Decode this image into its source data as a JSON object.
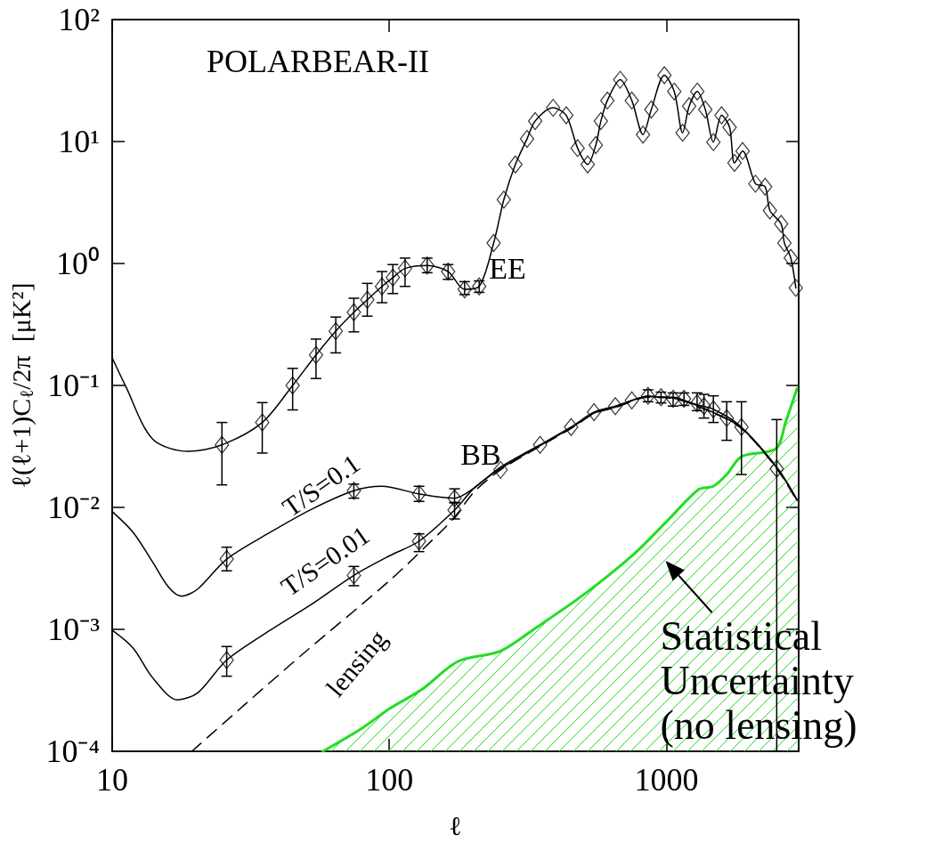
{
  "chart_data": {
    "type": "line",
    "title": "POLARBEAR-II",
    "xlabel": "ℓ",
    "ylabel": "ℓ(ℓ+1)C$_{ℓ}$/2π  [μK²]",
    "log": "xy",
    "grid": false,
    "marker": "diamond",
    "xlim": [
      10,
      3000
    ],
    "ylim": [
      0.0001,
      100
    ],
    "xticks": [
      10,
      100,
      1000
    ],
    "yticks": [
      {
        "value": 0.0001,
        "label": "10⁻⁴"
      },
      {
        "value": 0.001,
        "label": "10⁻³"
      },
      {
        "value": 0.01,
        "label": "10⁻²"
      },
      {
        "value": 0.1,
        "label": "10⁻¹"
      },
      {
        "value": 1,
        "label": "10⁰"
      },
      {
        "value": 10,
        "label": "10¹"
      },
      {
        "value": 100,
        "label": "10²"
      }
    ],
    "series": [
      {
        "color": "#000000",
        "marker": "none",
        "x": [
          10,
          11.2,
          14,
          18.8,
          24.9,
          34.8,
          44.8,
          54.4,
          64.1,
          74.5,
          83.3,
          94.1,
          103,
          114,
          137,
          163,
          187,
          211,
          238,
          259,
          285,
          314,
          336,
          390,
          435,
          478,
          520,
          556,
          580,
          612,
          681,
          750,
          823,
          882,
          983,
          1067,
          1144,
          1208,
          1292,
          1381,
          1477,
          1581,
          1690,
          1760,
          1883,
          2095,
          2270,
          2362,
          2593,
          2665,
          2810,
          2930
        ],
        "values": [
          0.169,
          0.098,
          0.0363,
          0.0288,
          0.0326,
          0.0497,
          0.1,
          0.178,
          0.279,
          0.398,
          0.504,
          0.649,
          0.767,
          0.91,
          0.962,
          0.859,
          0.614,
          0.649,
          1.47,
          3.34,
          6.49,
          10.5,
          14.7,
          18.9,
          16.4,
          8.83,
          6.49,
          9.35,
          14.7,
          21.7,
          32.1,
          21.7,
          11.4,
          18.3,
          35.0,
          25.7,
          11.8,
          19.5,
          25.7,
          18.3,
          9.89,
          16.4,
          13.1,
          6.67,
          8.36,
          4.51,
          4.26,
          2.72,
          2.11,
          1.47,
          1.11,
          0.631
        ]
      },
      {
        "type": "scatter",
        "color": "#000000",
        "x": [
          24.9,
          34.8,
          44.8,
          54.4,
          64.1,
          74.5,
          83.3,
          94.1,
          103,
          114,
          137,
          163,
          187,
          211,
          238,
          259,
          285,
          314,
          336,
          390,
          435,
          478,
          520,
          556,
          580,
          612,
          681,
          750,
          823,
          882,
          983,
          1067,
          1144,
          1208,
          1292,
          1381,
          1477,
          1581,
          1690,
          1760,
          1883,
          2095,
          2270,
          2362,
          2593,
          2665,
          2810,
          2930
        ],
        "values": [
          0.0326,
          0.0497,
          0.1,
          0.178,
          0.279,
          0.398,
          0.504,
          0.649,
          0.767,
          0.91,
          0.962,
          0.859,
          0.614,
          0.649,
          1.47,
          3.34,
          6.49,
          10.5,
          14.7,
          18.9,
          16.4,
          8.83,
          6.49,
          9.35,
          14.7,
          21.7,
          32.1,
          21.7,
          11.4,
          18.3,
          35.0,
          25.7,
          11.8,
          19.5,
          25.7,
          18.3,
          9.89,
          16.4,
          13.1,
          6.67,
          8.36,
          4.51,
          4.26,
          2.72,
          2.11,
          1.47,
          1.11,
          0.631
        ],
        "errors": [
          [
            0.0153,
            0.0497
          ],
          [
            0.0279,
            0.0723
          ],
          [
            0.063,
            0.138
          ],
          [
            0.114,
            0.24
          ],
          [
            0.185,
            0.364
          ],
          [
            0.275,
            0.519
          ],
          [
            0.37,
            0.687
          ],
          [
            0.477,
            0.859
          ],
          [
            0.567,
            0.98
          ],
          [
            0.649,
            1.107
          ],
          [
            0.84,
            1.107
          ],
          [
            0.741,
            0.98
          ],
          [
            0.556,
            0.71
          ],
          [
            0.58,
            0.72
          ],
          null,
          null,
          null,
          null,
          null,
          null,
          null,
          null,
          null,
          null,
          null,
          null,
          null,
          null,
          null,
          null,
          null,
          null,
          null,
          null,
          null,
          null,
          null,
          null,
          null,
          null,
          null,
          null,
          null,
          null,
          null,
          null,
          null,
          null
        ]
      },
      {
        "type": "line",
        "color": "#000000",
        "marker": "none",
        "x": [
          10,
          11.9,
          14,
          16,
          17.8,
          20.4,
          25.9,
          37.2,
          53,
          74.5,
          94,
          128,
          172,
          203,
          252,
          350,
          453,
          548,
          654,
          750,
          858,
          956,
          1067,
          1157,
          1291,
          1477,
          1835,
          2500,
          2960
        ],
        "values": [
          0.00925,
          0.00625,
          0.00356,
          0.00221,
          0.00187,
          0.00215,
          0.00377,
          0.00625,
          0.00977,
          0.0137,
          0.0149,
          0.0129,
          0.0119,
          0.0145,
          0.0214,
          0.0326,
          0.0456,
          0.0604,
          0.0676,
          0.0755,
          0.0822,
          0.08,
          0.08,
          0.0755,
          0.0695,
          0.0638,
          0.047,
          0.0214,
          0.0116
        ]
      },
      {
        "type": "line",
        "color": "#000000",
        "marker": "none",
        "x": [
          10,
          11.9,
          14,
          17.2,
          20.4,
          25.9,
          37.2,
          53,
          74.5,
          100,
          128,
          172,
          203,
          252,
          350,
          453,
          548,
          654,
          858,
          1067,
          1291,
          1835,
          2500,
          2960
        ],
        "values": [
          0.000984,
          0.000703,
          0.000401,
          0.000264,
          0.000303,
          0.00056,
          0.000984,
          0.00163,
          0.00277,
          0.004,
          0.00528,
          0.0095,
          0.0145,
          0.0208,
          0.0321,
          0.0449,
          0.0594,
          0.0664,
          0.0809,
          0.0785,
          0.0684,
          0.0461,
          0.0211,
          0.0114
        ]
      },
      {
        "type": "line",
        "color": "#000000",
        "marker": "none",
        "line_style": "dashed",
        "x": [
          19.4,
          30,
          50,
          100,
          150,
          172,
          203,
          252,
          350,
          453,
          548,
          654,
          858,
          1067,
          1291,
          1835,
          2500,
          2960
        ],
        "values": [
          0.0001,
          0.00024,
          0.00066,
          0.0025,
          0.006,
          0.0083,
          0.0135,
          0.0203,
          0.0317,
          0.0444,
          0.0587,
          0.0658,
          0.08,
          0.0778,
          0.0676,
          0.0456,
          0.0208,
          0.0112
        ]
      },
      {
        "type": "scatter",
        "color": "#000000",
        "x": [
          25.9,
          25.9,
          74.5,
          74.5,
          128,
          128,
          172,
          172,
          252,
          350,
          453,
          548,
          654,
          750,
          858,
          956,
          1057,
          1157,
          1290,
          1366,
          1477,
          1650,
          1865,
          2500
        ],
        "values": [
          0.00377,
          0.00056,
          0.0137,
          0.00277,
          0.0129,
          0.00528,
          0.0119,
          0.0095,
          0.0203,
          0.0326,
          0.0456,
          0.0604,
          0.0676,
          0.0755,
          0.0822,
          0.08,
          0.0778,
          0.0778,
          0.0714,
          0.0676,
          0.0638,
          0.054,
          0.0456,
          0.0208
        ],
        "errors": [
          [
            0.00302,
            0.00472
          ],
          [
            0.000413,
            0.000723
          ],
          [
            0.0119,
            0.0155
          ],
          [
            0.00228,
            0.00328
          ],
          [
            0.0112,
            0.0149
          ],
          [
            0.00434,
            0.00607
          ],
          [
            0.0109,
            0.0142
          ],
          [
            0.00804,
            0.011
          ],
          null,
          null,
          null,
          null,
          null,
          null,
          [
            0.0735,
            0.092
          ],
          [
            0.0719,
            0.0881
          ],
          [
            0.0677,
            0.0868
          ],
          [
            0.0686,
            0.0868
          ],
          [
            0.0621,
            0.0869
          ],
          [
            0.054,
            0.0845
          ],
          [
            0.0497,
            0.0822
          ],
          [
            0.0355,
            0.0735
          ],
          [
            0.0186,
            0.0735
          ],
          [
            0.0001,
            0.0525
          ]
        ]
      },
      {
        "type": "area",
        "color": "#22dd22",
        "marker": "none",
        "x": [
          57.6,
          79.8,
          100,
          131,
          177,
          252,
          340,
          511,
          770,
          1010,
          1311,
          1477,
          1650,
          1865,
          2484,
          2690,
          2960
        ],
        "values": [
          0.0001,
          0.000155,
          0.000223,
          0.000321,
          0.000546,
          0.000664,
          0.00104,
          0.00198,
          0.00422,
          0.00782,
          0.0141,
          0.0149,
          0.0186,
          0.0261,
          0.0303,
          0.0497,
          0.0946
        ]
      }
    ],
    "annotations": [
      "EE",
      "BB",
      "T/S=0.1",
      "T/S=0.01",
      "lensing",
      "Statistical\nUncertainty\n(no lensing)"
    ]
  }
}
